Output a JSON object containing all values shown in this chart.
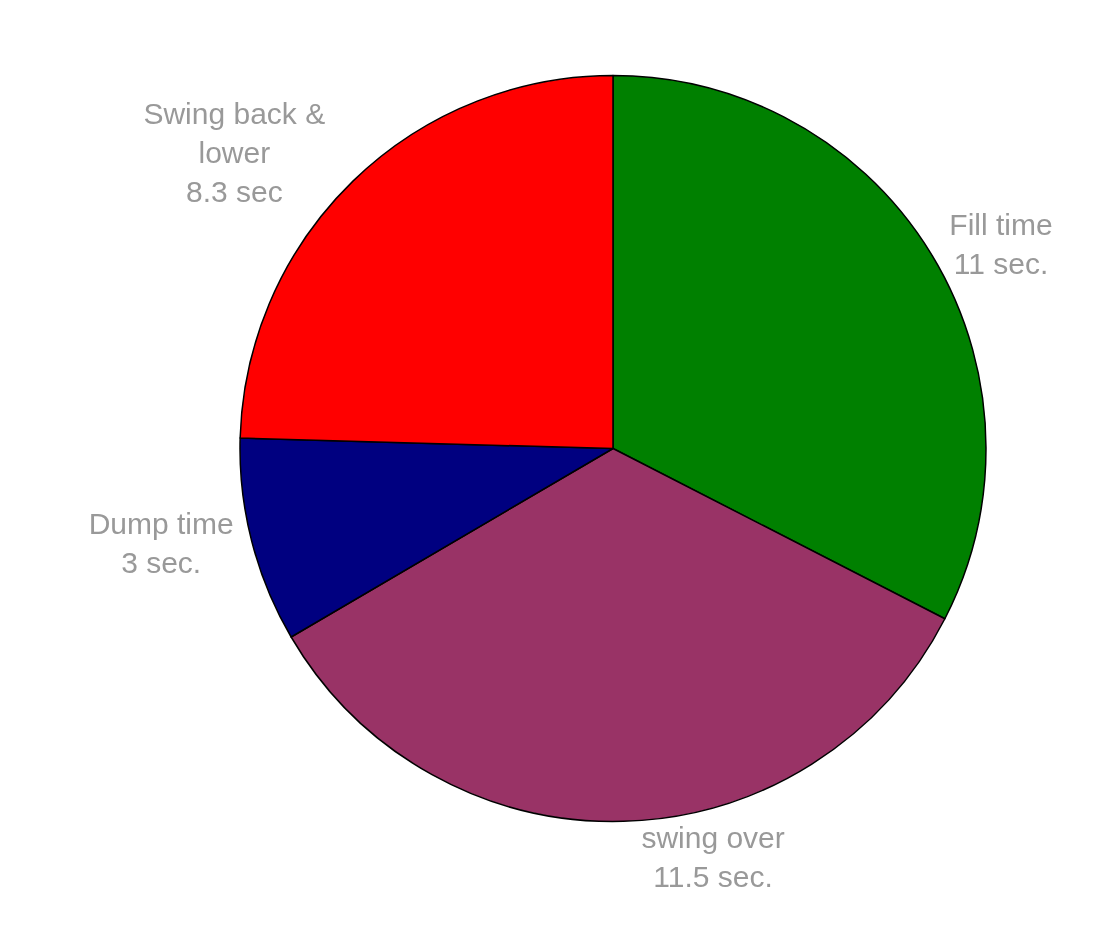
{
  "chart_data": {
    "type": "pie",
    "categories": [
      "Fill time",
      "swing over",
      "Dump time",
      "Swing back &\nlower"
    ],
    "values": [
      11,
      11.5,
      3,
      8.3
    ],
    "value_labels": [
      "11 sec.",
      "11.5 sec.",
      "3 sec.",
      "8.3 sec"
    ],
    "colors": [
      "#008000",
      "#993366",
      "#000080",
      "#ff0000"
    ],
    "legend": false
  }
}
